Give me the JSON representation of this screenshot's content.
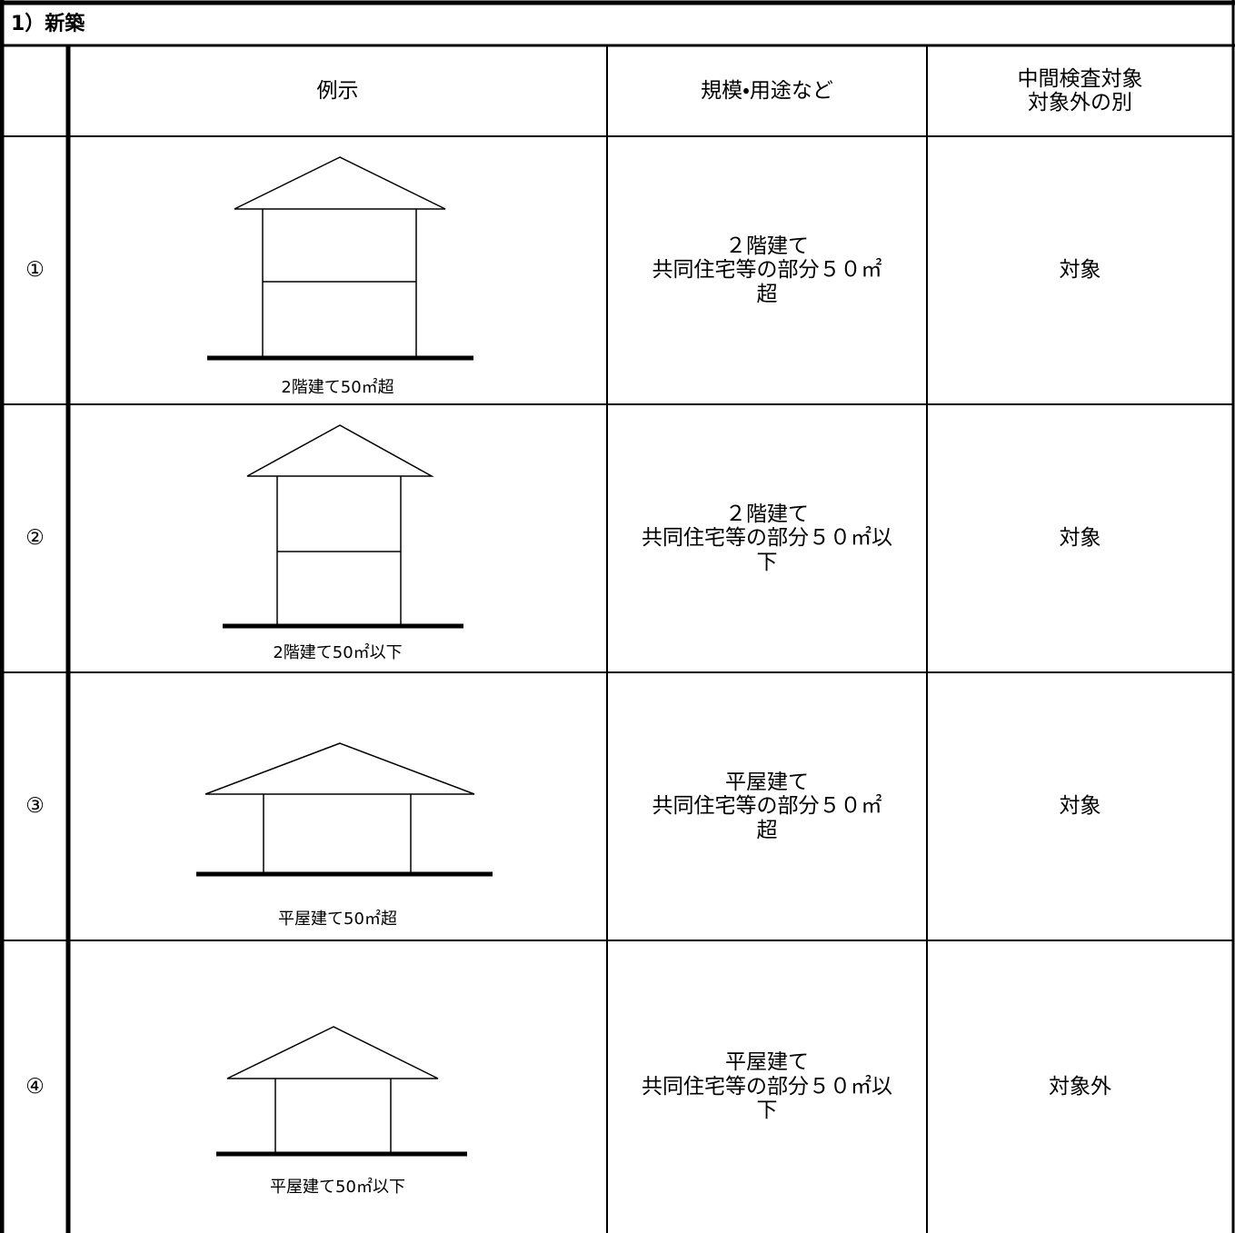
{
  "section_title": "1）新築",
  "header": {
    "example": "例示",
    "scale_use": "規模・用途など",
    "inspection": [
      "中間検査対象",
      "対象外の別"
    ]
  },
  "rows": [
    {
      "number": "①",
      "caption": "2階建て50㎡超",
      "description": [
        "２階建て",
        "共同住宅等の部分５０㎡",
        "超"
      ],
      "result": "対象"
    },
    {
      "number": "②",
      "caption": "2階建て50㎡以下",
      "description": [
        "２階建て",
        "共同住宅等の部分５０㎡以",
        "下"
      ],
      "result": "対象"
    },
    {
      "number": "③",
      "caption": "平屋建て50㎡超",
      "description": [
        "平屋建て",
        "共同住宅等の部分５０㎡",
        "超"
      ],
      "result": "対象"
    },
    {
      "number": "④",
      "caption": "平屋建て50㎡以下",
      "description": [
        "平屋建て",
        "共同住宅等の部分５０㎡以",
        "下"
      ],
      "result": "対象外"
    }
  ]
}
